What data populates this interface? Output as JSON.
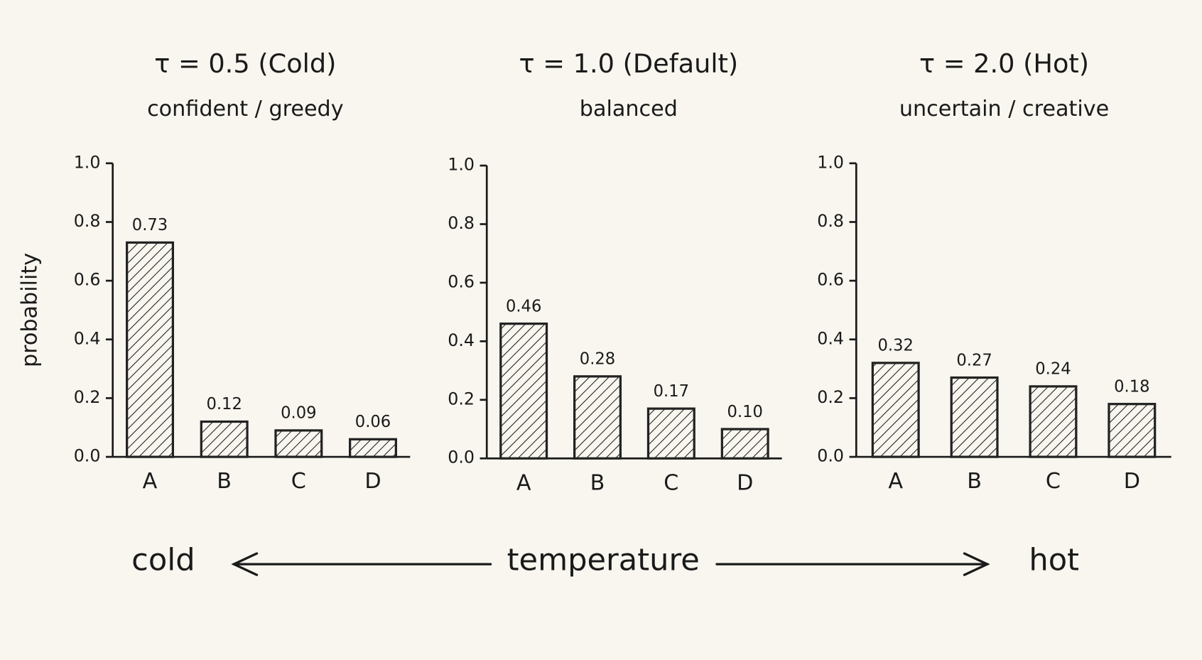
{
  "chart_data": [
    {
      "type": "bar",
      "title": "τ = 0.5 (Cold)",
      "subtitle": "confident / greedy",
      "ylabel": "probability",
      "categories": [
        "A",
        "B",
        "C",
        "D"
      ],
      "values": [
        0.73,
        0.12,
        0.09,
        0.06
      ],
      "color": "#222222",
      "hatch": true,
      "ylim": [
        0,
        1
      ],
      "yticks": [
        {
          "value": 0,
          "label": "0.0"
        },
        0.2,
        0.4,
        0.6,
        0.8,
        {
          "value": 1,
          "label": "1.0"
        }
      ]
    },
    {
      "type": "bar",
      "title": "τ = 1.0 (Default)",
      "subtitle": "balanced",
      "categories": [
        "A",
        "B",
        "C",
        "D"
      ],
      "values": [
        0.46,
        0.28,
        0.17,
        0.1
      ],
      "value_labels": [
        "0.46",
        "0.28",
        "0.17",
        "0.10"
      ],
      "color": "#222222",
      "hatch": true,
      "ylim": [
        0,
        1
      ],
      "yticks": [
        {
          "value": 0,
          "label": "0.0"
        },
        0.2,
        0.4,
        0.6,
        0.8,
        {
          "value": 1,
          "label": "1.0"
        }
      ]
    },
    {
      "type": "bar",
      "title": "τ = 2.0 (Hot)",
      "subtitle": "uncertain / creative",
      "categories": [
        "A",
        "B",
        "C",
        "D"
      ],
      "values": [
        0.32,
        0.27,
        0.24,
        0.18
      ],
      "color": "#222222",
      "hatch": true,
      "ylim": [
        0,
        1
      ],
      "yticks": [
        {
          "value": 0,
          "label": "0.0"
        },
        0.2,
        0.4,
        0.6,
        0.8,
        {
          "value": 1,
          "label": "1.0"
        }
      ]
    }
  ],
  "temperature_axis": {
    "left": "cold",
    "center": "temperature",
    "right": "hot"
  }
}
